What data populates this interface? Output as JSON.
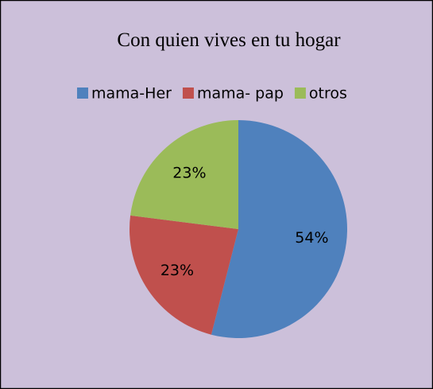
{
  "chart_data": {
    "type": "pie",
    "title": "Con quien vives en tu hogar",
    "categories": [
      "mama-Her",
      "mama- pap",
      "otros"
    ],
    "values": [
      54,
      23,
      23
    ],
    "value_labels": [
      "54%",
      "23%",
      "23%"
    ],
    "colors": [
      "#4f81bd",
      "#c0504d",
      "#9bbb59"
    ],
    "legend": "top"
  }
}
